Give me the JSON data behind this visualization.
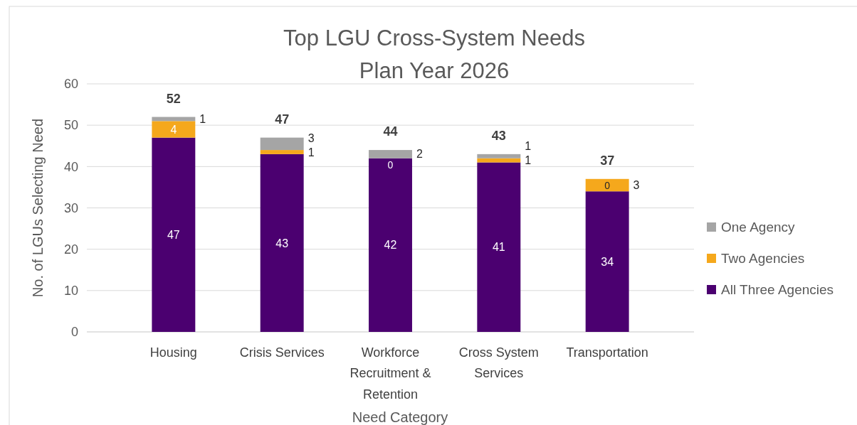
{
  "chart_data": {
    "type": "bar",
    "title": "Top LGU Cross-System Needs",
    "subtitle": "Plan Year 2026",
    "xlabel": "Need Category",
    "ylabel": "No. of LGUs Selecting Need",
    "categories": [
      "Housing",
      "Crisis Services",
      "Workforce Recruitment & Retention",
      "Cross System Services",
      "Transportation"
    ],
    "series": [
      {
        "name": "All Three Agencies",
        "color": "#4b0070",
        "values": [
          47,
          43,
          42,
          41,
          34
        ]
      },
      {
        "name": "Two Agencies",
        "color": "#f5a81c",
        "values": [
          4,
          1,
          0,
          1,
          3
        ]
      },
      {
        "name": "One Agency",
        "color": "#a5a5a5",
        "values": [
          1,
          3,
          2,
          1,
          0
        ]
      }
    ],
    "stacked": true,
    "data_labels": true,
    "totals": [
      "52",
      "47",
      "44",
      "43",
      "37"
    ],
    "ylim": [
      0,
      60
    ],
    "yticks": [
      0,
      10,
      20,
      30,
      40,
      50,
      60
    ],
    "grid": "y",
    "legend": "right"
  }
}
